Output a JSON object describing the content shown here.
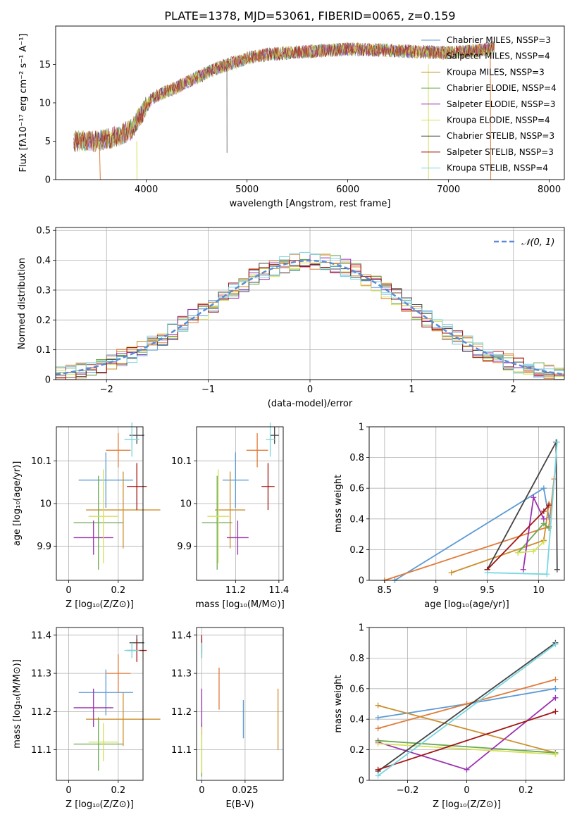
{
  "figure": {
    "title": "PLATE=1378, MJD=53061, FIBERID=0065, z=0.159"
  },
  "model_colors": {
    "Chabrier MILES": "#5b9bd5",
    "Salpeter MILES": "#e07b39",
    "Kroupa MILES": "#cc8f2e",
    "Chabrier ELODIE": "#6aa84f",
    "Salpeter ELODIE": "#9b30b0",
    "Kroupa ELODIE": "#d4e157",
    "Chabrier STELIB": "#444444",
    "Salpeter STELIB": "#a31515",
    "Kroupa STELIB": "#78d6e0"
  },
  "chart_data": [
    {
      "id": "spectrum",
      "type": "line",
      "xlabel": "wavelength [Angstrom, rest frame]",
      "ylabel": "Flux [fλ10⁻¹⁷ erg cm⁻² s⁻¹ A⁻¹]",
      "xlim": [
        3100,
        8150
      ],
      "ylim": [
        0,
        20
      ],
      "xticks": [
        4000,
        5000,
        6000,
        7000,
        8000
      ],
      "yticks": [
        0,
        5,
        10,
        15
      ],
      "grid": false,
      "legend_position": "right",
      "legend": [
        "Chabrier MILES, NSSP=3",
        "Salpeter MILES, NSSP=4",
        "Kroupa MILES, NSSP=3",
        "Chabrier ELODIE, NSSP=4",
        "Salpeter ELODIE, NSSP=3",
        "Kroupa ELODIE, NSSP=4",
        "Chabrier STELIB, NSSP=3",
        "Salpeter STELIB, NSSP=3",
        "Kroupa STELIB, NSSP=4"
      ],
      "continuum": {
        "wavelength": [
          3300,
          3500,
          3700,
          3850,
          3950,
          4050,
          4200,
          4300,
          4500,
          4700,
          5000,
          5200,
          5500,
          6000,
          6300,
          6600,
          7000,
          7300,
          7500
        ],
        "flux": [
          5.0,
          5.0,
          5.6,
          6.5,
          8.5,
          10.5,
          11.5,
          12.0,
          13.3,
          14.5,
          15.8,
          16.3,
          16.6,
          17.0,
          16.9,
          16.7,
          16.5,
          16.8,
          17.3
        ]
      }
    },
    {
      "id": "residuals",
      "type": "histogram",
      "xlabel": "(data-model)/error",
      "ylabel": "Normed distribution",
      "xlim": [
        -2.5,
        2.5
      ],
      "ylim": [
        0,
        0.51
      ],
      "xticks": [
        -2,
        -1,
        0,
        1,
        2
      ],
      "yticks": [
        0.0,
        0.1,
        0.2,
        0.3,
        0.4,
        0.5
      ],
      "grid": true,
      "legend_position": "top-right",
      "reference_curve": "𝒩(0, 1)",
      "bin_width": 0.1
    },
    {
      "id": "age-vs-z",
      "type": "scatter",
      "xlabel": "Z [log₁₀(Z/Z⊙)]",
      "ylabel": "age  [log₁₀(age/yr)]",
      "xlim": [
        -0.05,
        0.3
      ],
      "ylim": [
        9.82,
        10.18
      ],
      "xticks": [
        0.0,
        0.2
      ],
      "yticks": [
        9.9,
        10.0,
        10.1
      ],
      "grid": true,
      "points": [
        {
          "model": "Chabrier MILES",
          "x": 0.15,
          "y": 10.055,
          "xerr": 0.11,
          "yerr": 0.065
        },
        {
          "model": "Salpeter MILES",
          "x": 0.2,
          "y": 10.125,
          "xerr": 0.05,
          "yerr": 0.04
        },
        {
          "model": "Kroupa MILES",
          "x": 0.22,
          "y": 9.985,
          "xerr": 0.15,
          "yerr": 0.09
        },
        {
          "model": "Chabrier ELODIE",
          "x": 0.12,
          "y": 9.955,
          "xerr": 0.1,
          "yerr": 0.11
        },
        {
          "model": "Salpeter ELODIE",
          "x": 0.1,
          "y": 9.92,
          "xerr": 0.08,
          "yerr": 0.04
        },
        {
          "model": "Kroupa ELODIE",
          "x": 0.14,
          "y": 9.97,
          "xerr": 0.06,
          "yerr": 0.11
        },
        {
          "model": "Chabrier STELIB",
          "x": 0.275,
          "y": 10.16,
          "xerr": 0.03,
          "yerr": 0.02
        },
        {
          "model": "Salpeter STELIB",
          "x": 0.275,
          "y": 10.04,
          "xerr": 0.04,
          "yerr": 0.055
        },
        {
          "model": "Kroupa STELIB",
          "x": 0.255,
          "y": 10.15,
          "xerr": 0.03,
          "yerr": 0.04
        }
      ]
    },
    {
      "id": "age-vs-mass",
      "type": "scatter",
      "xlabel": "mass [log₁₀(M/M⊙)]",
      "ylabel": "",
      "xlim": [
        11.02,
        11.42
      ],
      "ylim": [
        9.82,
        10.18
      ],
      "xticks": [
        11.2,
        11.4
      ],
      "yticks": [
        9.9,
        10.0,
        10.1
      ],
      "grid": true,
      "points": [
        {
          "model": "Chabrier MILES",
          "x": 11.2,
          "y": 10.055,
          "xerr": 0.06,
          "yerr": 0.065
        },
        {
          "model": "Salpeter MILES",
          "x": 11.3,
          "y": 10.125,
          "xerr": 0.05,
          "yerr": 0.04
        },
        {
          "model": "Kroupa MILES",
          "x": 11.175,
          "y": 9.985,
          "xerr": 0.07,
          "yerr": 0.09
        },
        {
          "model": "Chabrier ELODIE",
          "x": 11.115,
          "y": 9.955,
          "xerr": 0.07,
          "yerr": 0.11
        },
        {
          "model": "Salpeter ELODIE",
          "x": 11.21,
          "y": 9.92,
          "xerr": 0.05,
          "yerr": 0.04
        },
        {
          "model": "Kroupa ELODIE",
          "x": 11.12,
          "y": 9.97,
          "xerr": 0.05,
          "yerr": 0.11
        },
        {
          "model": "Chabrier STELIB",
          "x": 11.38,
          "y": 10.16,
          "xerr": 0.02,
          "yerr": 0.02
        },
        {
          "model": "Salpeter STELIB",
          "x": 11.35,
          "y": 10.04,
          "xerr": 0.03,
          "yerr": 0.055
        },
        {
          "model": "Kroupa STELIB",
          "x": 11.36,
          "y": 10.15,
          "xerr": 0.02,
          "yerr": 0.04
        }
      ]
    },
    {
      "id": "weight-vs-age",
      "type": "line",
      "xlabel": "age  [log₁₀(age/yr)]",
      "ylabel": "mass weight",
      "xlim": [
        8.35,
        10.25
      ],
      "ylim": [
        0,
        1.0
      ],
      "xticks": [
        8.5,
        9.0,
        9.5,
        10.0
      ],
      "yticks": [
        0.0,
        0.2,
        0.4,
        0.6,
        0.8,
        1.0
      ],
      "grid": true,
      "series": [
        {
          "model": "Chabrier MILES",
          "x": [
            8.6,
            10.05,
            10.1
          ],
          "y": [
            0.0,
            0.6,
            0.41
          ]
        },
        {
          "model": "Salpeter MILES",
          "x": [
            8.5,
            10.1,
            10.15
          ],
          "y": [
            0.0,
            0.35,
            0.66
          ]
        },
        {
          "model": "Kroupa MILES",
          "x": [
            9.15,
            10.05,
            10.1
          ],
          "y": [
            0.05,
            0.26,
            0.5
          ]
        },
        {
          "model": "Chabrier ELODIE",
          "x": [
            9.8,
            10.05,
            10.1
          ],
          "y": [
            0.18,
            0.37,
            0.34
          ]
        },
        {
          "model": "Salpeter ELODIE",
          "x": [
            9.85,
            9.95,
            10.05
          ],
          "y": [
            0.07,
            0.54,
            0.4
          ]
        },
        {
          "model": "Kroupa ELODIE",
          "x": [
            9.8,
            9.95,
            10.05
          ],
          "y": [
            0.18,
            0.19,
            0.25
          ]
        },
        {
          "model": "Chabrier STELIB",
          "x": [
            9.5,
            10.17,
            10.18
          ],
          "y": [
            0.07,
            0.9,
            0.07
          ]
        },
        {
          "model": "Salpeter STELIB",
          "x": [
            9.5,
            10.05,
            10.1
          ],
          "y": [
            0.07,
            0.45,
            0.49
          ]
        },
        {
          "model": "Kroupa STELIB",
          "x": [
            9.5,
            10.08,
            10.18
          ],
          "y": [
            0.05,
            0.04,
            0.9
          ]
        }
      ]
    },
    {
      "id": "mass-vs-z",
      "type": "scatter",
      "xlabel": "Z [log₁₀(Z/Z⊙)]",
      "ylabel": "mass [log₁₀(M/M⊙)]",
      "xlim": [
        -0.05,
        0.3
      ],
      "ylim": [
        11.02,
        11.42
      ],
      "xticks": [
        0.0,
        0.2
      ],
      "yticks": [
        11.1,
        11.2,
        11.3,
        11.4
      ],
      "grid": true,
      "points": [
        {
          "model": "Chabrier MILES",
          "x": 0.15,
          "y": 11.25,
          "xerr": 0.11,
          "yerr": 0.06
        },
        {
          "model": "Salpeter MILES",
          "x": 0.2,
          "y": 11.3,
          "xerr": 0.05,
          "yerr": 0.05
        },
        {
          "model": "Kroupa MILES",
          "x": 0.22,
          "y": 11.18,
          "xerr": 0.15,
          "yerr": 0.07
        },
        {
          "model": "Chabrier ELODIE",
          "x": 0.12,
          "y": 11.115,
          "xerr": 0.1,
          "yerr": 0.07
        },
        {
          "model": "Salpeter ELODIE",
          "x": 0.1,
          "y": 11.21,
          "xerr": 0.08,
          "yerr": 0.05
        },
        {
          "model": "Kroupa ELODIE",
          "x": 0.14,
          "y": 11.12,
          "xerr": 0.06,
          "yerr": 0.05
        },
        {
          "model": "Chabrier STELIB",
          "x": 0.275,
          "y": 11.38,
          "xerr": 0.03,
          "yerr": 0.02
        },
        {
          "model": "Salpeter STELIB",
          "x": 0.275,
          "y": 11.36,
          "xerr": 0.04,
          "yerr": 0.03
        },
        {
          "model": "Kroupa STELIB",
          "x": 0.255,
          "y": 11.36,
          "xerr": 0.03,
          "yerr": 0.02
        }
      ]
    },
    {
      "id": "mass-vs-ebv",
      "type": "scatter",
      "xlabel": "E(B-V)",
      "ylabel": "",
      "xlim": [
        -0.003,
        0.047
      ],
      "ylim": [
        11.02,
        11.42
      ],
      "xticks": [
        0.0,
        0.025
      ],
      "yticks": [
        11.1,
        11.2,
        11.3,
        11.4
      ],
      "grid": true,
      "points": [
        {
          "model": "Chabrier MILES",
          "x": 0.024,
          "y": 11.18,
          "yerr": 0.05
        },
        {
          "model": "Salpeter MILES",
          "x": 0.01,
          "y": 11.26,
          "yerr": 0.055
        },
        {
          "model": "Kroupa MILES",
          "x": 0.044,
          "y": 11.18,
          "yerr": 0.08
        },
        {
          "model": "Chabrier ELODIE",
          "x": 0.0,
          "y": 11.1,
          "yerr": 0.07
        },
        {
          "model": "Salpeter ELODIE",
          "x": 0.0,
          "y": 11.2,
          "yerr": 0.06
        },
        {
          "model": "Kroupa ELODIE",
          "x": 0.0,
          "y": 11.1,
          "yerr": 0.06
        },
        {
          "model": "Chabrier STELIB",
          "x": 0.0,
          "y": 11.37,
          "yerr": 0.02
        },
        {
          "model": "Salpeter STELIB",
          "x": 0.0,
          "y": 11.37,
          "yerr": 0.03
        },
        {
          "model": "Kroupa STELIB",
          "x": 0.0,
          "y": 11.36,
          "yerr": 0.02
        }
      ]
    },
    {
      "id": "weight-vs-z",
      "type": "line",
      "xlabel": "Z [log₁₀(Z/Z⊙)]",
      "ylabel": "mass weight",
      "xlim": [
        -0.33,
        0.33
      ],
      "ylim": [
        0,
        1.0
      ],
      "xticks": [
        -0.2,
        0.0,
        0.2
      ],
      "yticks": [
        0.0,
        0.2,
        0.4,
        0.6,
        0.8,
        1.0
      ],
      "grid": true,
      "series": [
        {
          "model": "Chabrier MILES",
          "x": [
            -0.3,
            0.0,
            0.3
          ],
          "y": [
            0.41,
            0.5,
            0.6
          ]
        },
        {
          "model": "Salpeter MILES",
          "x": [
            -0.3,
            0.0,
            0.3
          ],
          "y": [
            0.34,
            0.5,
            0.66
          ]
        },
        {
          "model": "Kroupa MILES",
          "x": [
            -0.3,
            0.3
          ],
          "y": [
            0.49,
            0.18
          ]
        },
        {
          "model": "Chabrier ELODIE",
          "x": [
            -0.3,
            0.3
          ],
          "y": [
            0.26,
            0.18
          ]
        },
        {
          "model": "Salpeter ELODIE",
          "x": [
            -0.3,
            0.0,
            0.3
          ],
          "y": [
            0.25,
            0.07,
            0.54
          ]
        },
        {
          "model": "Kroupa ELODIE",
          "x": [
            -0.3,
            0.3
          ],
          "y": [
            0.24,
            0.17
          ]
        },
        {
          "model": "Chabrier STELIB",
          "x": [
            -0.3,
            0.3
          ],
          "y": [
            0.06,
            0.9
          ]
        },
        {
          "model": "Salpeter STELIB",
          "x": [
            -0.3,
            0.3
          ],
          "y": [
            0.07,
            0.45
          ]
        },
        {
          "model": "Kroupa STELIB",
          "x": [
            -0.3,
            0.3
          ],
          "y": [
            0.03,
            0.89
          ]
        }
      ]
    }
  ]
}
